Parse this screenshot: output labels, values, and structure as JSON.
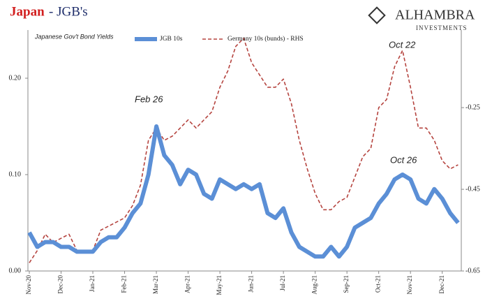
{
  "chart_data": {
    "type": "line",
    "title_parts": [
      "Japan",
      "- JGB's"
    ],
    "subtitle": "Japanese Gov't Bond Yields",
    "logo": [
      "ALHAMBRA",
      "INVESTMENTS"
    ],
    "annotations": [
      "Feb 26",
      "Oct 22",
      "Oct 26"
    ],
    "x": [
      0,
      0.25,
      0.5,
      0.75,
      1,
      1.25,
      1.5,
      1.75,
      2,
      2.25,
      2.5,
      2.75,
      3,
      3.25,
      3.5,
      3.75,
      4,
      4.25,
      4.5,
      4.75,
      5,
      5.25,
      5.5,
      5.75,
      6,
      6.25,
      6.5,
      6.75,
      7,
      7.25,
      7.5,
      7.75,
      8,
      8.25,
      8.5,
      8.75,
      9,
      9.25,
      9.5,
      9.75,
      10,
      10.25,
      10.5,
      10.75,
      11,
      11.25,
      11.5,
      11.75,
      12,
      12.25,
      12.5,
      12.75,
      13,
      13.25,
      13.5
    ],
    "xlim": [
      0,
      13.6
    ],
    "xticks": [
      {
        "value": 0,
        "label": "Nov-20"
      },
      {
        "value": 1,
        "label": "Dec-20"
      },
      {
        "value": 2,
        "label": "Jan-21"
      },
      {
        "value": 3,
        "label": "Feb-21"
      },
      {
        "value": 4,
        "label": "Mar-21"
      },
      {
        "value": 5,
        "label": "Apr-21"
      },
      {
        "value": 6,
        "label": "May-21"
      },
      {
        "value": 7,
        "label": "Jun-21"
      },
      {
        "value": 8,
        "label": "Jul-21"
      },
      {
        "value": 9,
        "label": "Aug-21"
      },
      {
        "value": 10,
        "label": "Sep-21"
      },
      {
        "value": 11,
        "label": "Oct-21"
      },
      {
        "value": 12,
        "label": "Nov-21"
      },
      {
        "value": 13,
        "label": "Dec-21"
      }
    ],
    "ylim": [
      0,
      0.25
    ],
    "yticks": [
      {
        "value": 0,
        "label": "0.00"
      },
      {
        "value": 0.1,
        "label": "0.10"
      },
      {
        "value": 0.2,
        "label": "0.20"
      }
    ],
    "y2lim": [
      -0.65,
      -0.06
    ],
    "y2ticks": [
      -0.25,
      -0.45,
      -0.65
    ],
    "series": [
      {
        "name": "JGB 10s",
        "color": "#5b8fd6",
        "values": [
          0.04,
          0.025,
          0.03,
          0.03,
          0.025,
          0.025,
          0.02,
          0.02,
          0.02,
          0.03,
          0.035,
          0.035,
          0.045,
          0.06,
          0.07,
          0.1,
          0.15,
          0.12,
          0.11,
          0.09,
          0.105,
          0.1,
          0.08,
          0.075,
          0.095,
          0.09,
          0.085,
          0.09,
          0.085,
          0.09,
          0.06,
          0.055,
          0.065,
          0.04,
          0.025,
          0.02,
          0.015,
          0.015,
          0.025,
          0.015,
          0.025,
          0.045,
          0.05,
          0.055,
          0.07,
          0.08,
          0.095,
          0.1,
          0.095,
          0.075,
          0.07,
          0.085,
          0.075,
          0.06,
          0.05
        ]
      },
      {
        "name": "Germany 10s (bunds) - RHS",
        "color": "#b5443f",
        "axis": "y2",
        "values": [
          -0.63,
          -0.6,
          -0.56,
          -0.58,
          -0.57,
          -0.56,
          -0.6,
          -0.6,
          -0.6,
          -0.55,
          -0.54,
          -0.53,
          -0.52,
          -0.49,
          -0.44,
          -0.33,
          -0.3,
          -0.33,
          -0.32,
          -0.3,
          -0.28,
          -0.3,
          -0.28,
          -0.26,
          -0.2,
          -0.16,
          -0.1,
          -0.08,
          -0.14,
          -0.17,
          -0.2,
          -0.2,
          -0.18,
          -0.24,
          -0.33,
          -0.4,
          -0.46,
          -0.5,
          -0.5,
          -0.48,
          -0.47,
          -0.42,
          -0.37,
          -0.35,
          -0.25,
          -0.23,
          -0.15,
          -0.11,
          -0.2,
          -0.3,
          -0.3,
          -0.33,
          -0.38,
          -0.4,
          -0.39
        ]
      }
    ]
  }
}
